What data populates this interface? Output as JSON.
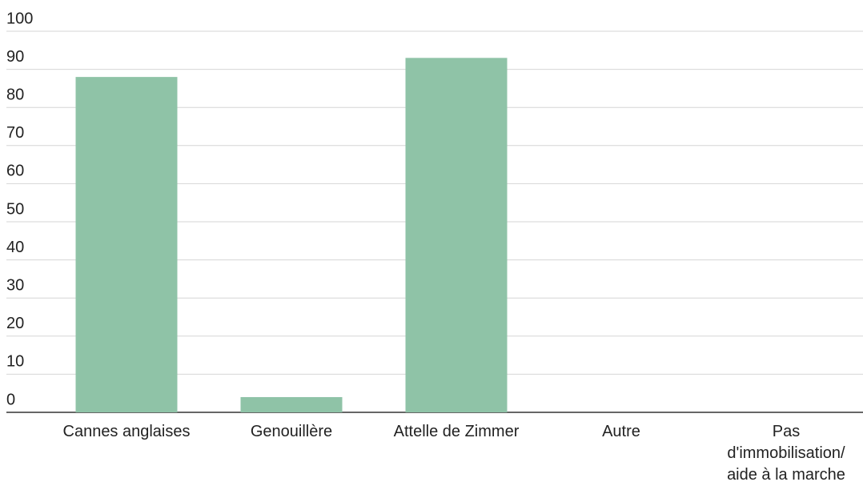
{
  "chart_data": {
    "type": "bar",
    "categories": [
      "Cannes anglaises",
      "Genouillère",
      "Attelle de Zimmer",
      "Autre",
      "Pas d'immobilisation/ aide à la marche"
    ],
    "values": [
      88,
      4,
      93,
      0,
      0
    ],
    "color": "#8fc3a7",
    "ylim": [
      0,
      100
    ],
    "yticks": [
      0,
      10,
      20,
      30,
      40,
      50,
      60,
      70,
      80,
      90,
      100
    ],
    "grid": true
  }
}
